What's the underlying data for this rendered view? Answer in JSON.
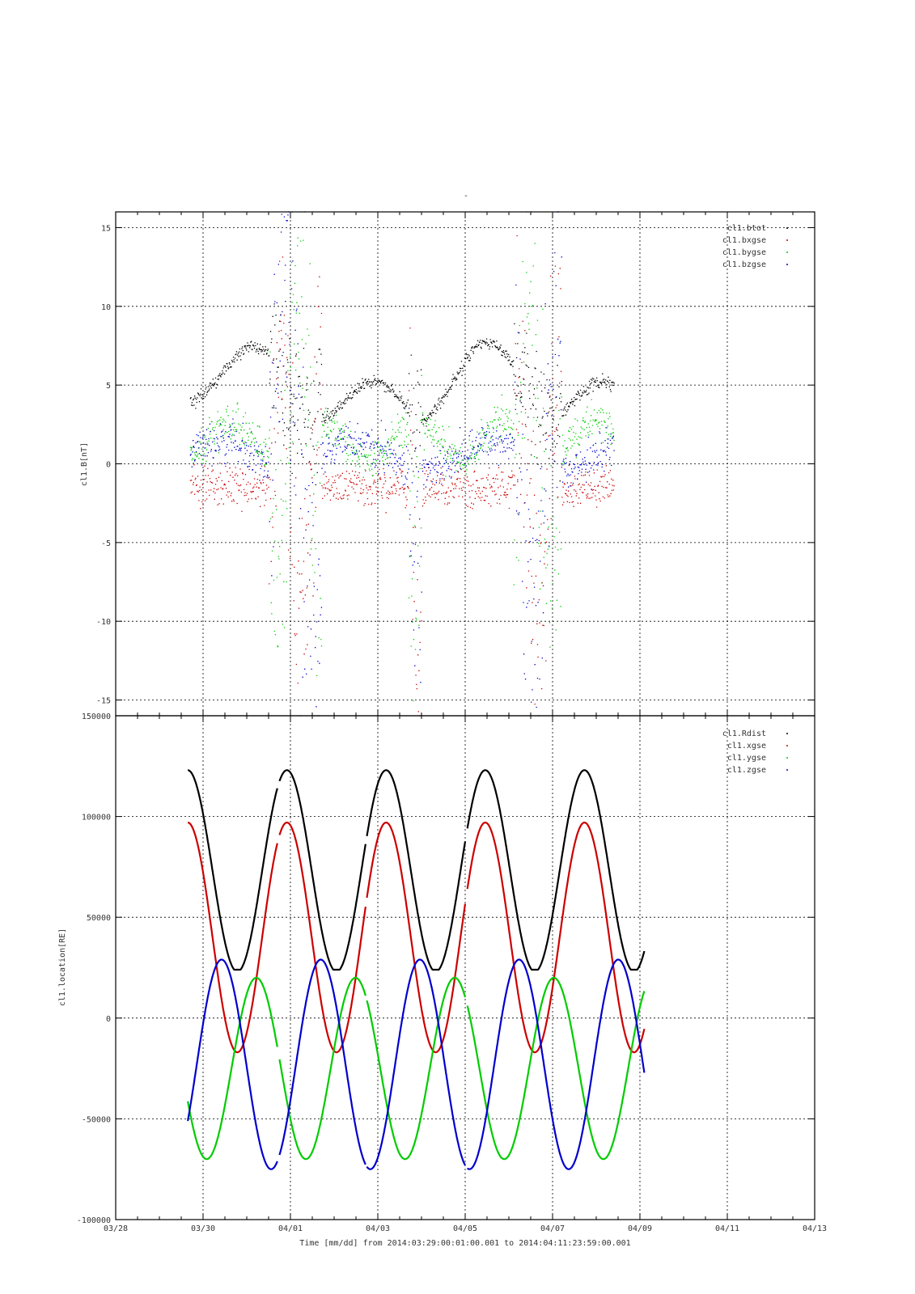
{
  "chart_data": [
    {
      "type": "scatter",
      "title": "-",
      "ylabel": "cl1.B[nT]",
      "xlim": [
        "03/28",
        "04/13"
      ],
      "ylim": [
        -16,
        16
      ],
      "yticks": [
        -15,
        -10,
        -5,
        0,
        5,
        10,
        15
      ],
      "grid": true,
      "legend_position": "top-right",
      "series": [
        {
          "name": "cl1.btot",
          "color": "#000000"
        },
        {
          "name": "cl1.bxgse",
          "color": "#cc0000"
        },
        {
          "name": "cl1.bygse",
          "color": "#00cc00"
        },
        {
          "name": "cl1.bzgse",
          "color": "#0000cc"
        }
      ]
    },
    {
      "type": "scatter",
      "ylabel": "cl1.location[RE]",
      "xlabel": "Time [mm/dd]  from 2014:03:29:00:01:00.001  to  2014:04:11:23:59:00.001",
      "xlim": [
        "03/28",
        "04/13"
      ],
      "xticks": [
        "03/28",
        "03/30",
        "04/01",
        "04/03",
        "04/05",
        "04/07",
        "04/09",
        "04/11",
        "04/13"
      ],
      "ylim": [
        -100000,
        150000
      ],
      "yticks": [
        -100000,
        -50000,
        0,
        50000,
        100000,
        150000
      ],
      "grid": true,
      "legend_position": "top-right",
      "series": [
        {
          "name": "cl1.Rdist",
          "color": "#000000"
        },
        {
          "name": "cl1.xgse",
          "color": "#cc0000"
        },
        {
          "name": "cl1.ygse",
          "color": "#00cc00"
        },
        {
          "name": "cl1.zgse",
          "color": "#0000cc"
        }
      ]
    }
  ]
}
